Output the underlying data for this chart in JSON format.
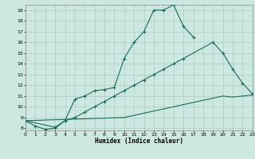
{
  "xlabel": "Humidex (Indice chaleur)",
  "bg_color": "#cce8e0",
  "grid_color": "#aaccC4",
  "line_color": "#1a6b5a",
  "line1_x": [
    0,
    1,
    2,
    3,
    4,
    5,
    6,
    7,
    8,
    9,
    10,
    11,
    12,
    13,
    14,
    15,
    16,
    17
  ],
  "line1_y": [
    8.7,
    8.2,
    7.9,
    8.0,
    8.7,
    10.7,
    11.0,
    11.5,
    11.6,
    11.8,
    14.5,
    16.0,
    17.0,
    19.0,
    19.0,
    19.5,
    17.5,
    16.5
  ],
  "line2_x": [
    0,
    3,
    4,
    5,
    6,
    7,
    8,
    9,
    10,
    11,
    12,
    13,
    14,
    15,
    16,
    19,
    20,
    21,
    22,
    23
  ],
  "line2_y": [
    8.7,
    8.1,
    8.7,
    9.0,
    9.5,
    10.0,
    10.5,
    11.0,
    11.5,
    12.0,
    12.5,
    13.0,
    13.5,
    14.0,
    14.5,
    16.0,
    15.0,
    13.5,
    12.2,
    11.2
  ],
  "line3_x": [
    0,
    10,
    11,
    12,
    13,
    14,
    15,
    16,
    17,
    18,
    19,
    20,
    21,
    22,
    23
  ],
  "line3_y": [
    8.7,
    9.0,
    9.2,
    9.4,
    9.6,
    9.8,
    10.0,
    10.2,
    10.4,
    10.6,
    10.8,
    11.0,
    10.9,
    11.0,
    11.1
  ],
  "xlim": [
    0,
    23
  ],
  "ylim": [
    7.8,
    19.5
  ],
  "yticks": [
    8,
    9,
    10,
    11,
    12,
    13,
    14,
    15,
    16,
    17,
    18,
    19
  ],
  "xticks": [
    0,
    1,
    2,
    3,
    4,
    5,
    6,
    7,
    8,
    9,
    10,
    11,
    12,
    13,
    14,
    15,
    16,
    17,
    18,
    19,
    20,
    21,
    22,
    23
  ]
}
